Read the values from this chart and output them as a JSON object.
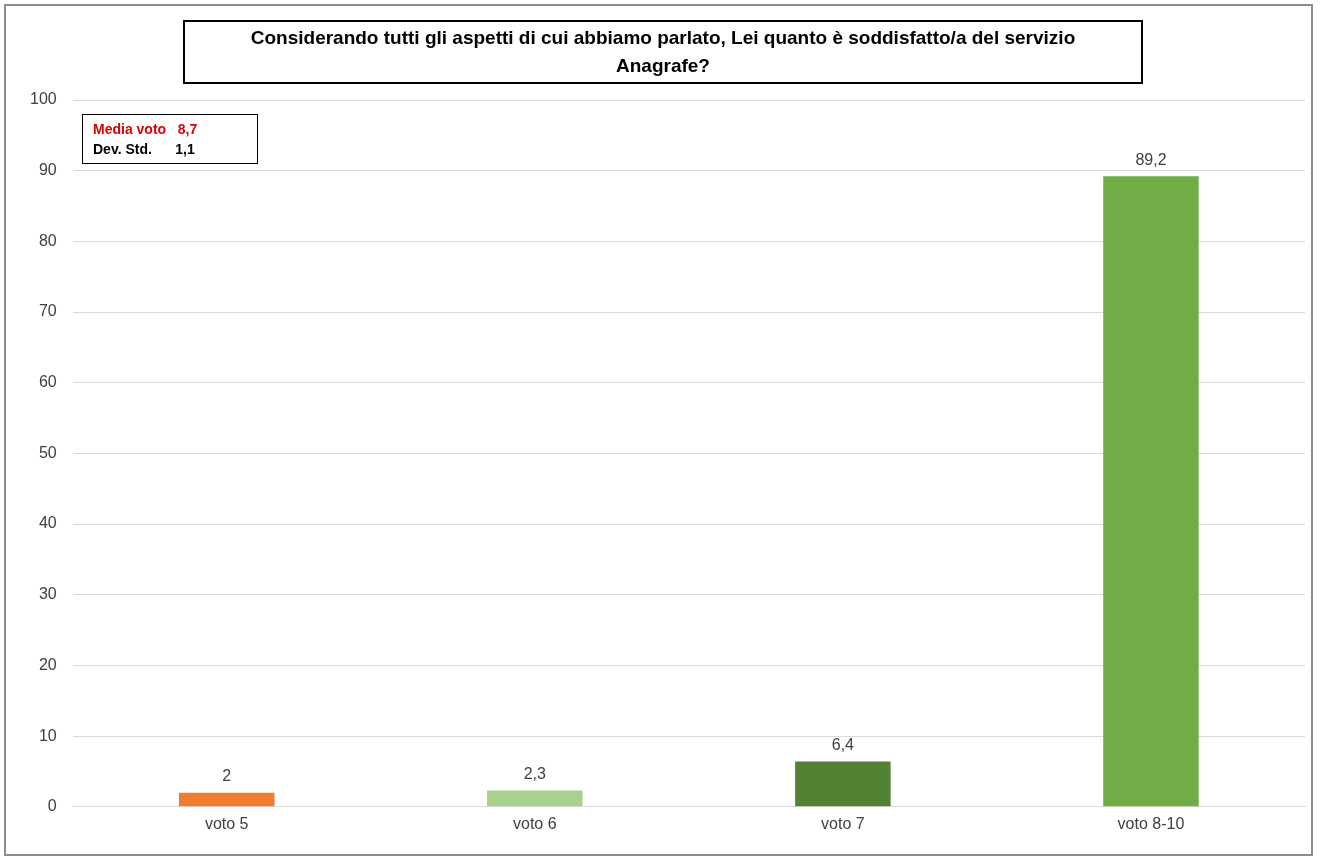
{
  "chart_data": {
    "type": "bar",
    "title": "Considerando  tutti gli aspetti di cui abbiamo parlato, Lei quanto è soddisfatto/a  del servizio Anagrafe?",
    "categories": [
      "voto 5",
      "voto 6",
      "voto 7",
      "voto 8-10"
    ],
    "values": [
      2,
      2.3,
      6.4,
      89.2
    ],
    "colors": [
      "#ed7d31",
      "#a9d18e",
      "#548235",
      "#70ad47"
    ],
    "value_labels": [
      "2",
      "2,3",
      "6,4",
      "89,2"
    ],
    "ylim": [
      0,
      100
    ],
    "yticks": [
      0,
      10,
      20,
      30,
      40,
      50,
      60,
      70,
      80,
      90,
      100
    ],
    "grid": "y",
    "legend": false,
    "annotations": [
      "Media voto   8,7",
      "Dev. Std.      1,1"
    ]
  }
}
